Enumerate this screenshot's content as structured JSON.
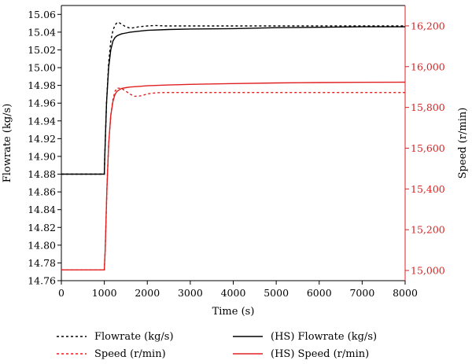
{
  "chart_data": {
    "type": "line",
    "xlabel": "Time (s)",
    "ylabel_left": "Flowrate (kg/s)",
    "ylabel_right": "Speed (r/min)",
    "xlim": [
      0,
      8000
    ],
    "ylim_left": [
      14.76,
      15.07
    ],
    "ylim_right": [
      14950,
      16300
    ],
    "x_ticks": [
      "0",
      "1000",
      "2000",
      "3000",
      "4000",
      "5000",
      "6000",
      "7000",
      "8000"
    ],
    "x_tick_values": [
      0,
      1000,
      2000,
      3000,
      4000,
      5000,
      6000,
      7000,
      8000
    ],
    "left_ticks": [
      "14.76",
      "14.78",
      "14.80",
      "14.82",
      "14.84",
      "14.86",
      "14.88",
      "14.90",
      "14.92",
      "14.94",
      "14.96",
      "14.98",
      "15.00",
      "15.02",
      "15.04",
      "15.06"
    ],
    "left_tick_values": [
      14.76,
      14.78,
      14.8,
      14.82,
      14.84,
      14.86,
      14.88,
      14.9,
      14.92,
      14.94,
      14.96,
      14.98,
      15.0,
      15.02,
      15.04,
      15.06
    ],
    "right_ticks": [
      "15,000",
      "15,200",
      "15,400",
      "15,600",
      "15,800",
      "16,000",
      "16,200"
    ],
    "right_tick_values": [
      15000,
      15200,
      15400,
      15600,
      15800,
      16000,
      16200
    ],
    "legend_position": "bottom",
    "series": [
      {
        "name": "Flowrate (kg/s)",
        "axis": "left",
        "color": "#000000",
        "dash": "dashed",
        "x": [
          0,
          1000,
          1010,
          1050,
          1100,
          1150,
          1200,
          1250,
          1300,
          1350,
          1400,
          1500,
          1600,
          1700,
          1800,
          2000,
          2200,
          2400,
          3000,
          4000,
          5000,
          6000,
          7000,
          8000
        ],
        "y": [
          14.88,
          14.88,
          14.9,
          14.96,
          15.005,
          15.03,
          15.042,
          15.048,
          15.051,
          15.0505,
          15.049,
          15.046,
          15.0445,
          15.045,
          15.046,
          15.047,
          15.0475,
          15.047,
          15.047,
          15.047,
          15.047,
          15.047,
          15.047,
          15.047
        ]
      },
      {
        "name": "Speed (r/min)",
        "axis": "right",
        "color": "#e02020",
        "dash": "dashed",
        "x": [
          0,
          1000,
          1020,
          1060,
          1100,
          1150,
          1200,
          1250,
          1300,
          1400,
          1500,
          1600,
          1700,
          1800,
          1900,
          2000,
          2200,
          2400,
          3000,
          4000,
          5000,
          6000,
          7000,
          8000
        ],
        "y": [
          15003,
          15003,
          15100,
          15400,
          15620,
          15760,
          15840,
          15880,
          15895,
          15893,
          15880,
          15865,
          15855,
          15855,
          15860,
          15866,
          15872,
          15873,
          15873,
          15873,
          15873,
          15873,
          15873,
          15873
        ]
      },
      {
        "name": "(HS) Flowrate (kg/s)",
        "axis": "left",
        "color": "#000000",
        "dash": "solid",
        "x": [
          0,
          1000,
          1010,
          1050,
          1100,
          1150,
          1200,
          1250,
          1300,
          1400,
          1500,
          1600,
          1800,
          2000,
          2500,
          3000,
          4000,
          5000,
          6000,
          7000,
          8000
        ],
        "y": [
          14.88,
          14.88,
          14.9,
          14.96,
          15.0,
          15.02,
          15.03,
          15.034,
          15.036,
          15.038,
          15.039,
          15.04,
          15.041,
          15.042,
          15.043,
          15.0435,
          15.044,
          15.045,
          15.0455,
          15.046,
          15.046
        ]
      },
      {
        "name": "(HS) Speed (r/min)",
        "axis": "right",
        "color": "#e02020",
        "dash": "solid",
        "x": [
          0,
          1000,
          1020,
          1060,
          1100,
          1150,
          1200,
          1250,
          1300,
          1400,
          1500,
          1600,
          1800,
          2000,
          2500,
          3000,
          4000,
          5000,
          6000,
          7000,
          8000
        ],
        "y": [
          15003,
          15003,
          15100,
          15400,
          15620,
          15760,
          15830,
          15865,
          15880,
          15893,
          15897,
          15900,
          15903,
          15906,
          15910,
          15913,
          15917,
          15920,
          15922,
          15923,
          15924
        ]
      }
    ]
  }
}
